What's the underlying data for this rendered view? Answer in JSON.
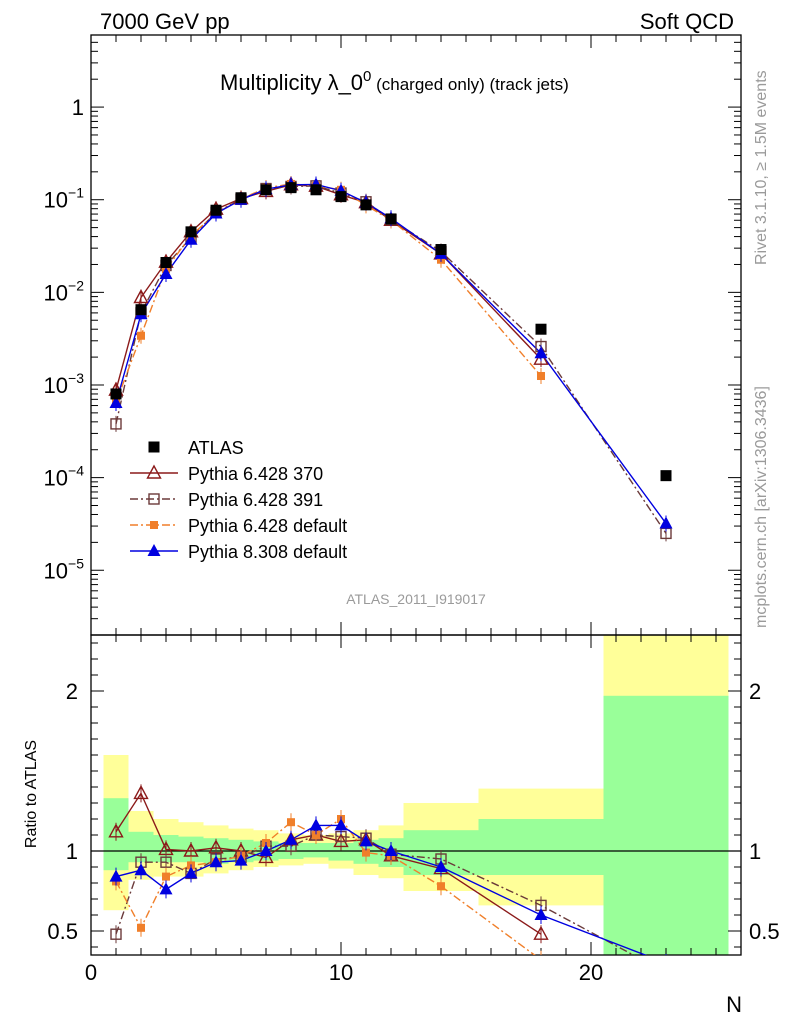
{
  "header": {
    "left": "7000 GeV pp",
    "right": "Soft QCD"
  },
  "side_labels": {
    "rivet": "Rivet 3.1.10, ≥ 1.5M events",
    "mcplots": "mcplots.cern.ch [arXiv:1306.3436]"
  },
  "chart_data": {
    "type": "scatter",
    "title_main": "Multiplicity λ_0",
    "title_sup": "0",
    "title_rest": " (charged only) (track jets)",
    "analysis_id": "ATLAS_2011_I919017",
    "xlabel": "N",
    "ylabel_ratio": "Ratio to ATLAS",
    "xlim": [
      0,
      26
    ],
    "ylim_main": [
      2e-06,
      6
    ],
    "ylim_ratio": [
      0.35,
      2.35
    ],
    "yscale_main": "log",
    "x_ticks": [
      "0",
      "10",
      "20"
    ],
    "y_ticks_main": [
      {
        "base": "1",
        "exp": ""
      },
      {
        "base": "10",
        "exp": "−1"
      },
      {
        "base": "10",
        "exp": "−2"
      },
      {
        "base": "10",
        "exp": "−3"
      },
      {
        "base": "10",
        "exp": "−4"
      },
      {
        "base": "10",
        "exp": "−5"
      }
    ],
    "y_ticks_ratio": [
      "0.5",
      "1",
      "2"
    ],
    "legend_position": "bottom-left",
    "x": [
      1,
      2,
      3,
      4,
      5,
      6,
      7,
      8,
      9,
      10,
      11,
      12,
      14,
      18,
      23
    ],
    "bins": [
      [
        0.5,
        1.5
      ],
      [
        1.5,
        2.5
      ],
      [
        2.5,
        3.5
      ],
      [
        3.5,
        4.5
      ],
      [
        4.5,
        5.5
      ],
      [
        5.5,
        6.5
      ],
      [
        6.5,
        7.5
      ],
      [
        7.5,
        8.5
      ],
      [
        8.5,
        9.5
      ],
      [
        9.5,
        10.5
      ],
      [
        10.5,
        11.5
      ],
      [
        11.5,
        12.5
      ],
      [
        12.5,
        15.5
      ],
      [
        15.5,
        20.5
      ],
      [
        20.5,
        25.5
      ]
    ],
    "data_values": [
      0.0008,
      0.0065,
      0.021,
      0.045,
      0.077,
      0.105,
      0.128,
      0.135,
      0.128,
      0.108,
      0.088,
      0.062,
      0.029,
      0.004,
      0.000105
    ],
    "band_green": [
      [
        0.88,
        1.33
      ],
      [
        0.93,
        1.12
      ],
      [
        0.93,
        1.1
      ],
      [
        0.93,
        1.09
      ],
      [
        0.92,
        1.08
      ],
      [
        0.93,
        1.07
      ],
      [
        0.94,
        1.06
      ],
      [
        0.95,
        1.05
      ],
      [
        0.96,
        1.05
      ],
      [
        0.94,
        1.05
      ],
      [
        0.92,
        1.07
      ],
      [
        0.9,
        1.08
      ],
      [
        0.85,
        1.13
      ],
      [
        0.85,
        1.2
      ],
      [
        0.35,
        1.97
      ]
    ],
    "band_yellow": [
      [
        0.63,
        1.6
      ],
      [
        0.82,
        1.25
      ],
      [
        0.84,
        1.2
      ],
      [
        0.84,
        1.18
      ],
      [
        0.86,
        1.16
      ],
      [
        0.88,
        1.14
      ],
      [
        0.9,
        1.13
      ],
      [
        0.91,
        1.11
      ],
      [
        0.92,
        1.1
      ],
      [
        0.89,
        1.11
      ],
      [
        0.85,
        1.13
      ],
      [
        0.83,
        1.16
      ],
      [
        0.75,
        1.3
      ],
      [
        0.66,
        1.39
      ],
      [
        0.35,
        2.35
      ]
    ],
    "series": [
      {
        "name": "ATLAS",
        "color": "#000000",
        "marker": "filled-square",
        "line": "none",
        "values": [
          0.0008,
          0.0065,
          0.021,
          0.045,
          0.077,
          0.105,
          0.128,
          0.135,
          0.128,
          0.108,
          0.088,
          0.062,
          0.029,
          0.004,
          0.000105
        ]
      },
      {
        "name": "Pythia 6.428 370",
        "color": "#8b1a1a",
        "marker": "open-triangle",
        "line": "solid",
        "values": [
          0.00088,
          0.0088,
          0.0212,
          0.045,
          0.079,
          0.103,
          0.123,
          0.145,
          0.14,
          0.113,
          0.093,
          0.06,
          0.026,
          0.0019,
          null
        ],
        "ratio": [
          1.12,
          1.36,
          1.01,
          1.0,
          1.02,
          1.0,
          0.96,
          1.07,
          1.1,
          1.06,
          1.07,
          0.97,
          0.89,
          0.48,
          null
        ]
      },
      {
        "name": "Pythia 6.428 391",
        "color": "#6b3a3a",
        "marker": "open-square",
        "line": "dash-dot",
        "values": [
          0.00038,
          0.006,
          0.0195,
          0.039,
          0.073,
          0.101,
          0.132,
          0.139,
          0.141,
          0.118,
          0.095,
          0.061,
          0.0276,
          0.0026,
          2.5e-05
        ],
        "ratio": [
          0.48,
          0.93,
          0.93,
          0.86,
          0.95,
          0.96,
          1.03,
          1.03,
          1.1,
          1.09,
          1.08,
          0.98,
          0.95,
          0.66,
          0.24
        ]
      },
      {
        "name": "Pythia 6.428 default",
        "color": "#f07f2a",
        "marker": "filled-square-small",
        "line": "dash-dot",
        "values": [
          0.00065,
          0.0034,
          0.0178,
          0.041,
          0.071,
          0.102,
          0.134,
          0.148,
          0.141,
          0.128,
          0.087,
          0.06,
          0.0225,
          0.00125,
          null
        ],
        "ratio": [
          0.81,
          0.52,
          0.84,
          0.91,
          0.93,
          0.97,
          1.05,
          1.18,
          1.1,
          1.2,
          0.99,
          0.97,
          0.78,
          0.32,
          null
        ]
      },
      {
        "name": "Pythia 8.308 default",
        "color": "#0000e0",
        "marker": "filled-triangle",
        "line": "solid",
        "values": [
          0.00064,
          0.0058,
          0.0158,
          0.037,
          0.071,
          0.1,
          0.13,
          0.145,
          0.146,
          0.125,
          0.093,
          0.063,
          0.026,
          0.0022,
          3.2e-05
        ],
        "ratio": [
          0.84,
          0.88,
          0.76,
          0.86,
          0.93,
          0.94,
          1.0,
          1.07,
          1.16,
          1.16,
          1.06,
          1.0,
          0.9,
          0.6,
          0.3
        ]
      }
    ]
  }
}
